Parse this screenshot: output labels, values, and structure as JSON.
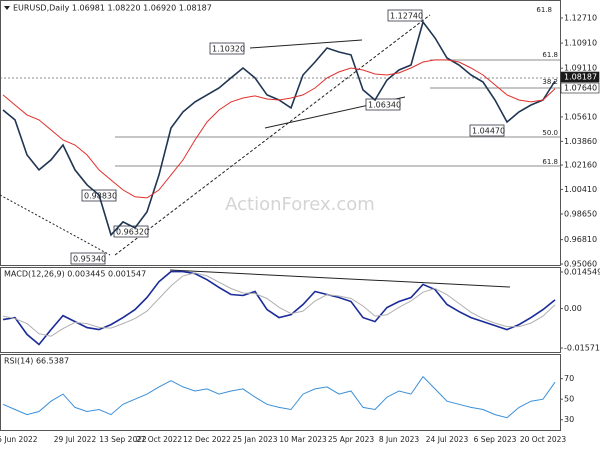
{
  "chart_data": [
    {
      "type": "line",
      "title": "EURUSD,Daily  1.06981 1.08220 1.06920 1.08187",
      "ylim": [
        0.9499,
        1.14
      ],
      "yticks": [
        {
          "value": 1.1271,
          "label": "1.12710"
        },
        {
          "value": 1.1091,
          "label": "1.10910"
        },
        {
          "value": 1.0911,
          "label": "1.09110"
        },
        {
          "value": 1.0561,
          "label": "1.05610"
        },
        {
          "value": 1.0386,
          "label": "1.03860"
        },
        {
          "value": 1.0216,
          "label": "1.02160"
        },
        {
          "value": 1.0041,
          "label": "1.00410"
        },
        {
          "value": 0.9865,
          "label": "0.98650"
        },
        {
          "value": 0.9681,
          "label": "0.96810"
        },
        {
          "value": 0.9506,
          "label": "0.95060"
        }
      ],
      "series": [
        {
          "name": "EURUSD",
          "color": "#1f3552",
          "values": [
            1.0611,
            1.054,
            1.0289,
            1.0181,
            1.0253,
            1.036,
            1.0181,
            1.0074,
            1.0002,
            0.9715,
            0.9808,
            0.9765,
            0.988,
            1.0145,
            1.0482,
            1.0597,
            1.0669,
            1.0719,
            1.0769,
            1.0841,
            1.0912,
            1.0841,
            1.0719,
            1.0683,
            1.0626,
            1.0862,
            1.0955,
            1.1056,
            1.1027,
            1.1006,
            1.0755,
            1.0683,
            1.0826,
            1.0898,
            1.0934,
            1.1242,
            1.1128,
            1.0984,
            1.0934,
            1.0862,
            1.0812,
            1.0683,
            1.0525,
            1.0597,
            1.0647,
            1.0683,
            1.08187
          ]
        },
        {
          "name": "MA",
          "color": "#e0302b",
          "values": [
            1.0719,
            1.0647,
            1.0576,
            1.054,
            1.0468,
            1.0396,
            1.036,
            1.0289,
            1.0181,
            1.0109,
            1.0038,
            0.9988,
            0.998,
            1.0038,
            1.0145,
            1.0253,
            1.0396,
            1.0525,
            1.0611,
            1.0669,
            1.0697,
            1.0712,
            1.069,
            1.0683,
            1.0697,
            1.0719,
            1.0769,
            1.0841,
            1.0884,
            1.0912,
            1.0898,
            1.0869,
            1.0862,
            1.0877,
            1.0912,
            1.0955,
            1.097,
            1.097,
            1.0955,
            1.0912,
            1.0862,
            1.0791,
            1.0719,
            1.0683,
            1.0669,
            1.0683,
            1.0764
          ]
        }
      ],
      "annotations": [
        "1.10320",
        "1.12740",
        "1.06340",
        "1.04470",
        "0.95340",
        "0.98830",
        "0.96320"
      ],
      "fib_labels": [
        "61.8",
        "61.8",
        "38.2",
        "50.0",
        "61.8"
      ],
      "price_labels": [
        "1.08187",
        "1.07640"
      ],
      "watermark": "ActionForex.com"
    },
    {
      "type": "line",
      "title": "MACD(12,26,9) 0.003445 0.001547",
      "ylim": [
        -0.0173,
        0.01654
      ],
      "yticks": [
        0.014549,
        {
          "value": 0,
          "label": "0.00"
        },
        -0.015712
      ],
      "series": [
        {
          "name": "MACD",
          "color": "#1a2b9a",
          "values": [
            -0.0044,
            -0.0036,
            -0.0103,
            -0.0143,
            -0.0084,
            -0.0028,
            -0.0052,
            -0.0076,
            -0.0084,
            -0.0064,
            -0.0036,
            -0.0004,
            0.0044,
            0.0107,
            0.0147,
            0.0147,
            0.0139,
            0.0115,
            0.0084,
            0.0056,
            0.0052,
            0.0068,
            -0.0004,
            -0.0036,
            -0.0024,
            0.0016,
            0.0068,
            0.0056,
            0.0044,
            0.0028,
            -0.0036,
            -0.0052,
            0.0004,
            0.0028,
            0.0044,
            0.0096,
            0.0076,
            0.0016,
            -0.0012,
            -0.0036,
            -0.0052,
            -0.0068,
            -0.0084,
            -0.0064,
            -0.0036,
            -0.0004,
            0.003445
          ]
        },
        {
          "name": "Signal",
          "color": "#b0b0b0",
          "values": [
            -0.003,
            -0.004,
            -0.006,
            -0.01,
            -0.011,
            -0.008,
            -0.0055,
            -0.006,
            -0.0075,
            -0.0078,
            -0.006,
            -0.004,
            -0.001,
            0.004,
            0.009,
            0.013,
            0.0142,
            0.013,
            0.0105,
            0.008,
            0.0062,
            0.006,
            0.004,
            0.0005,
            -0.002,
            -0.001,
            0.003,
            0.0055,
            0.005,
            0.004,
            0.001,
            -0.003,
            -0.0025,
            0.0005,
            0.003,
            0.0065,
            0.008,
            0.0055,
            0.002,
            -0.0015,
            -0.004,
            -0.0058,
            -0.0072,
            -0.0072,
            -0.0058,
            -0.003,
            0.001547
          ]
        }
      ]
    },
    {
      "type": "line",
      "title": "RSI(14) 66.5387",
      "ylim": [
        20,
        94
      ],
      "yticks": [
        70,
        50,
        30
      ],
      "categories": [
        null,
        "15 Jun 2022",
        null,
        null,
        null,
        null,
        "29 Jul 2022",
        null,
        null,
        null,
        "13 Sep 2022",
        null,
        null,
        "27 Oct 2022",
        null,
        null,
        null,
        "12 Dec 2022",
        null,
        null,
        null,
        "25 Jan 2023",
        null,
        null,
        null,
        "10 Mar 2023",
        null,
        null,
        null,
        "25 Apr 2023",
        null,
        null,
        null,
        "8 Jun 2023",
        null,
        null,
        null,
        "24 Jul 2023",
        null,
        null,
        null,
        "6 Sep 2023",
        null,
        null,
        null,
        "20 Oct 2023",
        null
      ],
      "series": [
        {
          "name": "RSI",
          "color": "#3b8fd8",
          "values": [
            45,
            40,
            35,
            38,
            48,
            55,
            42,
            38,
            40,
            35,
            45,
            50,
            55,
            62,
            68,
            62,
            58,
            60,
            55,
            58,
            60,
            52,
            45,
            42,
            40,
            55,
            60,
            62,
            55,
            58,
            42,
            40,
            52,
            58,
            55,
            72,
            60,
            48,
            45,
            42,
            40,
            35,
            32,
            42,
            48,
            50,
            66.5387
          ]
        }
      ]
    }
  ]
}
